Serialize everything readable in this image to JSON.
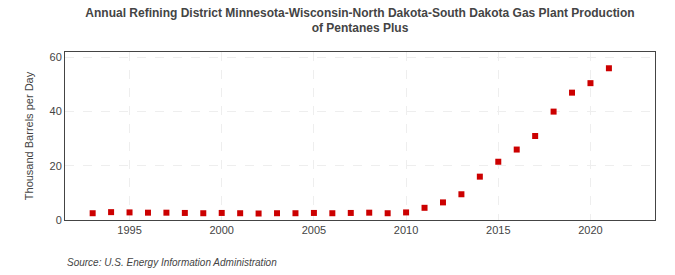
{
  "chart_data": {
    "type": "scatter",
    "title": "Annual Refining District Minnesota-Wisconsin-North Dakota-South Dakota Gas Plant Production\nof Pentanes Plus",
    "ylabel": "Thousand Barrels per Day",
    "source": "Source: U.S. Energy Information Administration",
    "x": [
      1993,
      1994,
      1995,
      1996,
      1997,
      1998,
      1999,
      2000,
      2001,
      2002,
      2003,
      2004,
      2005,
      2006,
      2007,
      2008,
      2009,
      2010,
      2011,
      2012,
      2013,
      2014,
      2015,
      2016,
      2017,
      2018,
      2019,
      2020,
      2021
    ],
    "values": [
      2.5,
      2.9,
      2.8,
      2.7,
      2.7,
      2.6,
      2.5,
      2.6,
      2.5,
      2.4,
      2.5,
      2.5,
      2.6,
      2.5,
      2.6,
      2.7,
      2.5,
      2.8,
      4.5,
      6.5,
      9.5,
      16.0,
      21.5,
      26.0,
      31.0,
      40.0,
      47.0,
      50.5,
      56.0
    ],
    "color": "#cc0000",
    "marker": "square",
    "xlim": [
      1991.5,
      2023.5
    ],
    "ylim": [
      0,
      62
    ],
    "xticks": [
      1995,
      2000,
      2005,
      2010,
      2015,
      2020
    ],
    "yticks": [
      0,
      20,
      40,
      60
    ],
    "grid": true
  }
}
